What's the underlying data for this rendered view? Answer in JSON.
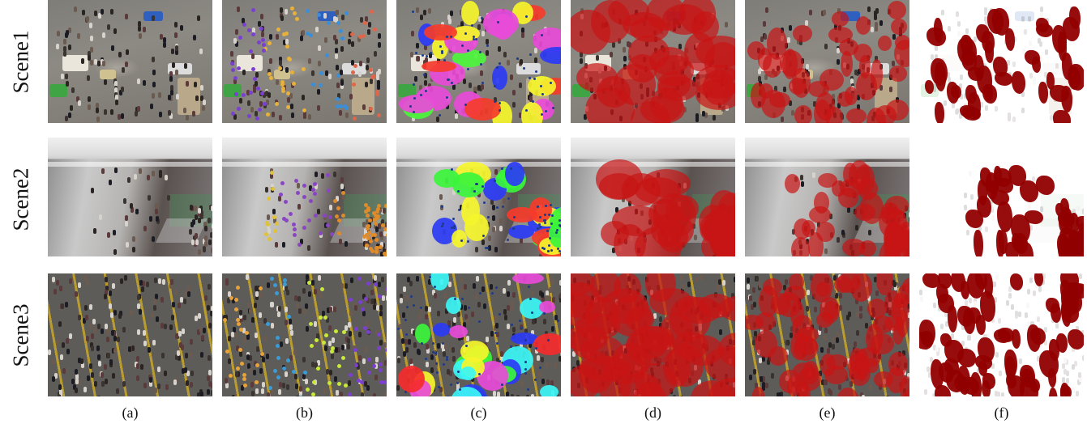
{
  "rows": [
    {
      "label": "Scene1"
    },
    {
      "label": "Scene2"
    },
    {
      "label": "Scene3"
    }
  ],
  "columns": [
    {
      "label": "(a)"
    },
    {
      "label": "(b)"
    },
    {
      "label": "(c)"
    },
    {
      "label": "(d)"
    },
    {
      "label": "(e)"
    },
    {
      "label": "(f)"
    }
  ]
}
